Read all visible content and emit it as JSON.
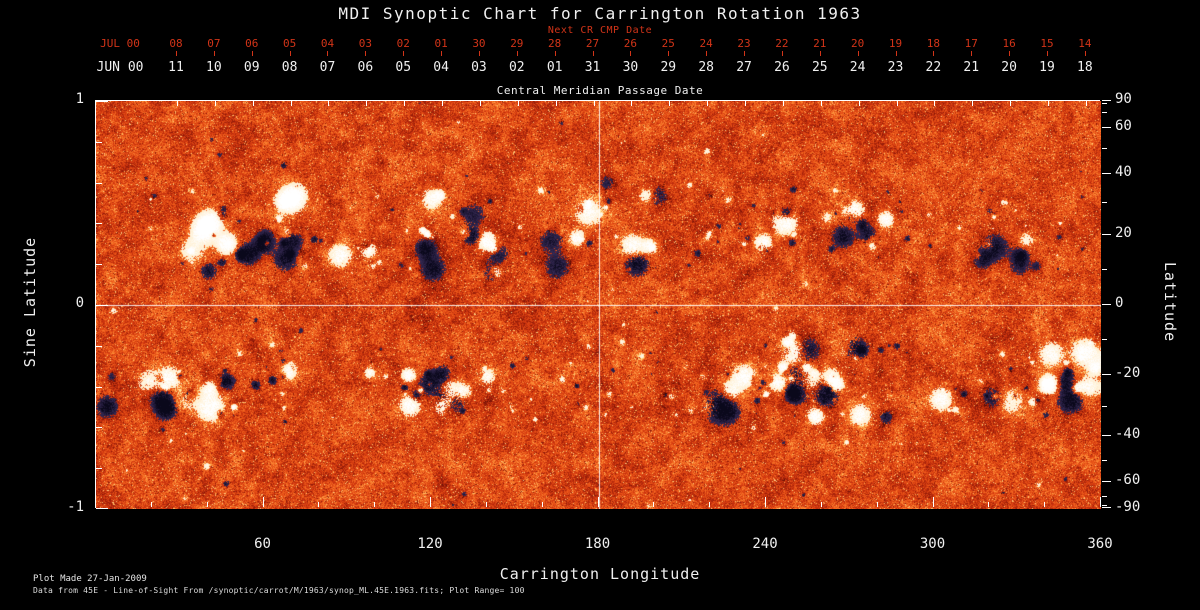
{
  "title": "MDI Synoptic Chart for Carrington Rotation 1963",
  "colors": {
    "background": "#000000",
    "red": "#d23418",
    "text": "#f0f0f0",
    "frame": "#ffffff",
    "crosshair": "#ffffff"
  },
  "top_axis": {
    "label": "Next CR CMP Date",
    "month_label": "JUL 00",
    "days": [
      "08",
      "07",
      "06",
      "05",
      "04",
      "03",
      "02",
      "01",
      "30",
      "29",
      "28",
      "27",
      "26",
      "25",
      "24",
      "23",
      "22",
      "21",
      "20",
      "19",
      "18",
      "17",
      "16",
      "15",
      "14"
    ]
  },
  "cmp_axis": {
    "label": "Central Meridian Passage Date",
    "month_label": "JUN 00",
    "days": [
      "11",
      "10",
      "09",
      "08",
      "07",
      "06",
      "05",
      "04",
      "03",
      "02",
      "01",
      "31",
      "30",
      "29",
      "28",
      "27",
      "26",
      "25",
      "24",
      "23",
      "22",
      "21",
      "20",
      "19",
      "18"
    ]
  },
  "left_axis": {
    "label": "Sine Latitude",
    "majors": [
      1,
      0,
      -1
    ],
    "minors": [
      0.8,
      0.6,
      0.4,
      0.2,
      -0.2,
      -0.4,
      -0.6,
      -0.8
    ]
  },
  "right_axis": {
    "label": "Latitude",
    "majors": [
      90,
      60,
      40,
      20,
      0,
      -20,
      -40,
      -60,
      -90
    ],
    "minors": [
      80,
      70,
      50,
      30,
      10,
      -10,
      -30,
      -50,
      -70,
      -80
    ]
  },
  "bottom_axis": {
    "label": "Carrington Longitude",
    "majors": [
      60,
      120,
      180,
      240,
      300,
      360
    ],
    "minor_step": 20,
    "range": [
      0,
      360
    ]
  },
  "footer": {
    "line1": "Plot Made 27-Jan-2009",
    "line2": "Data from 45E - Line-of-Sight From /synoptic/carrot/M/1963/synop_ML.45E.1963.fits; Plot Range=  100"
  },
  "chart_data": {
    "type": "heatmap",
    "title": "MDI Synoptic Chart for Carrington Rotation 1963",
    "instrument": "MDI",
    "carrington_rotation": 1963,
    "xlabel": "Carrington Longitude",
    "ylabel": "Sine Latitude",
    "ylabel_right": "Latitude",
    "xlim": [
      0,
      360
    ],
    "ylim": [
      -1,
      1
    ],
    "x_ticks": [
      60,
      120,
      180,
      240,
      300,
      360
    ],
    "y_ticks_sine": [
      1,
      0,
      -1
    ],
    "y_ticks_latitude_deg": [
      90,
      60,
      40,
      20,
      0,
      -20,
      -40,
      -60,
      -90
    ],
    "plot_range_gauss": 100,
    "crosshair_lines": {
      "vertical_at_longitude": 180,
      "horizontal_at_sine_latitude": 0
    },
    "activity_bands_latitude_deg": [
      22,
      -22
    ],
    "colormap": {
      "weak_field_background": [
        "#3c0502",
        "#cd3410",
        "#ff8a36",
        "#ffe8a6"
      ],
      "strong_negative_polarity": "#101028",
      "strong_positive_polarity": "#ffffff"
    },
    "top_axis_next_cr_dates": {
      "month": "JUL 00",
      "days": [
        "08",
        "07",
        "06",
        "05",
        "04",
        "03",
        "02",
        "01",
        "30",
        "29",
        "28",
        "27",
        "26",
        "25",
        "24",
        "23",
        "22",
        "21",
        "20",
        "19",
        "18",
        "17",
        "16",
        "15",
        "14"
      ]
    },
    "central_meridian_passage_dates": {
      "month": "JUN 00",
      "days": [
        "11",
        "10",
        "09",
        "08",
        "07",
        "06",
        "05",
        "04",
        "03",
        "02",
        "01",
        "31",
        "30",
        "29",
        "28",
        "27",
        "26",
        "25",
        "24",
        "23",
        "22",
        "21",
        "20",
        "19",
        "18"
      ]
    },
    "description": "Line-of-sight photospheric magnetic field synoptic map: mottled orange/red weak-field background with yellow speckle, white patches = strong positive polarity, dark navy/black patches = strong negative polarity, active regions clustered in two bands near +/-22 deg latitude; white crosshair at longitude 180 and sine latitude 0."
  }
}
